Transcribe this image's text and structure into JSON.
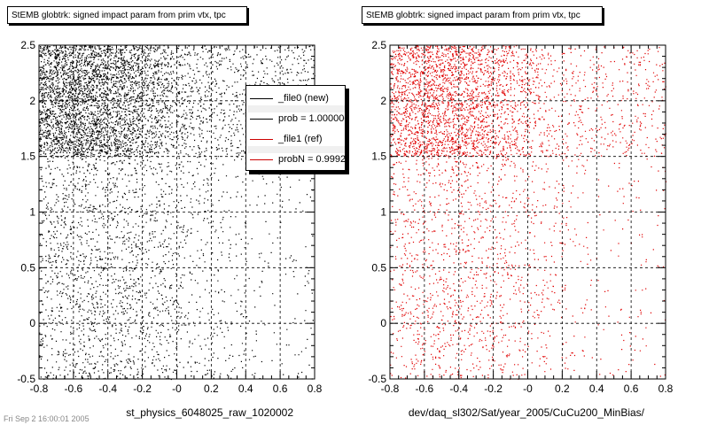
{
  "panels": [
    {
      "title": "StEMB globtrk: signed impact param from prim vtx, tpc",
      "x_label": "st_physics_6048025_raw_1020002",
      "marker_color": "#000000",
      "seed": 11
    },
    {
      "title": "StEMB globtrk: signed impact param from prim vtx, tpc",
      "x_label": "dev/daq_sl302/Sat/year_2005/CuCu200_MinBias/",
      "marker_color": "#e00000",
      "seed": 29
    }
  ],
  "legend": [
    {
      "label": "_file0 (new)",
      "color": "#000000"
    },
    {
      "label": "prob = 1.000000",
      "color": "#000000"
    },
    {
      "label": "_file1 (ref)",
      "color": "#cc0000"
    },
    {
      "label": "probN = 0.999212",
      "color": "#cc0000"
    }
  ],
  "footer_stamp": "Fri Sep 2 16:00:01 2005",
  "chart_data": [
    {
      "type": "scatter",
      "title": "StEMB globtrk: signed impact param from prim vtx, tpc",
      "xlabel": "st_physics_6048025_raw_1020002",
      "ylabel": "",
      "xlim": [
        -0.8,
        0.8
      ],
      "ylim": [
        -0.5,
        2.5
      ],
      "x_ticks": [
        "-0.8",
        "-0.6",
        "-0.4",
        "-0.2",
        "-0",
        "0.2",
        "0.4",
        "0.6",
        "0.8"
      ],
      "y_ticks": [
        "-0.5",
        "0",
        "0.5",
        "1",
        "1.5",
        "2",
        "2.5"
      ],
      "grid": true,
      "density_note": "dense band for y between 1.5 and 2.5 concentrated near x = -0.6 to -0.2; sparser below 1.5 falling off toward positive x",
      "series": [
        {
          "name": "_file0 (new)",
          "color": "#000000"
        }
      ]
    },
    {
      "type": "scatter",
      "title": "StEMB globtrk: signed impact param from prim vtx, tpc",
      "xlabel": "dev/daq_sl302/Sat/year_2005/CuCu200_MinBias/",
      "ylabel": "",
      "xlim": [
        -0.8,
        0.8
      ],
      "ylim": [
        -0.5,
        2.5
      ],
      "x_ticks": [
        "-0.8",
        "-0.6",
        "-0.4",
        "-0.2",
        "-0",
        "0.2",
        "0.4",
        "0.6",
        "0.8"
      ],
      "y_ticks": [
        "-0.5",
        "0",
        "0.5",
        "1",
        "1.5",
        "2",
        "2.5"
      ],
      "grid": true,
      "density_note": "same shape as left panel, sparser",
      "series": [
        {
          "name": "_file1 (ref)",
          "color": "#e00000"
        }
      ]
    }
  ]
}
